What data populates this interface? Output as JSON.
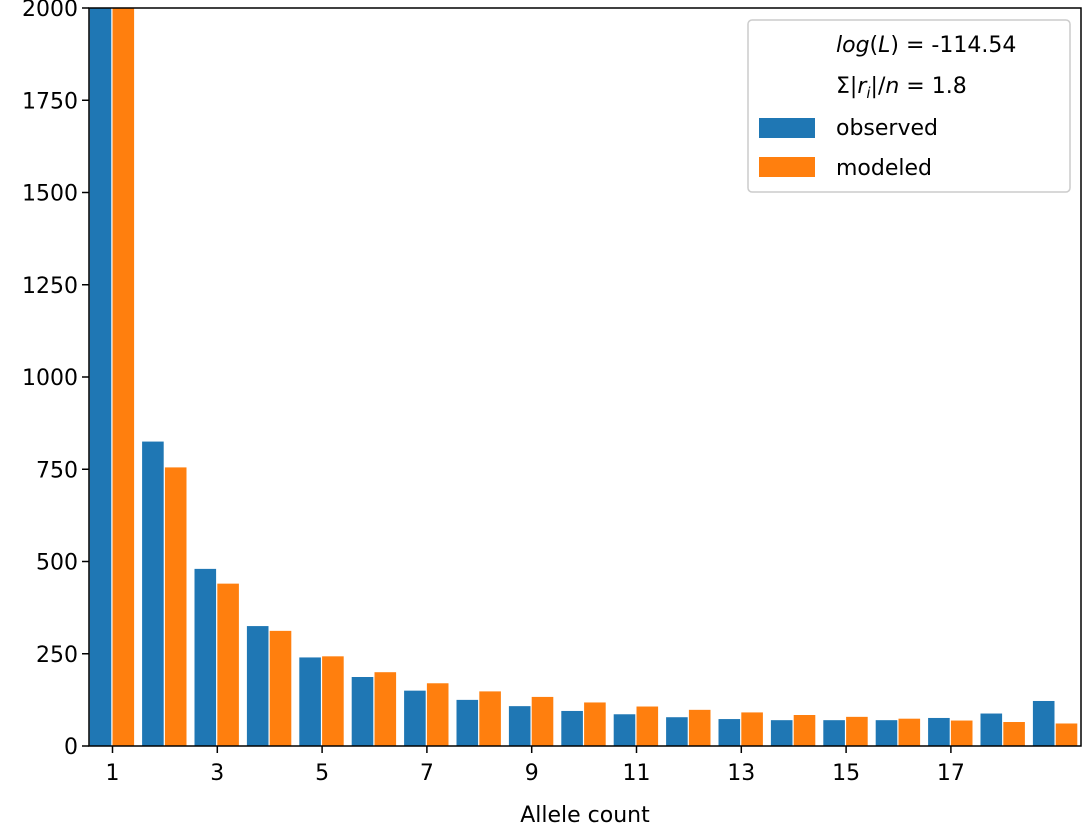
{
  "chart_data": {
    "type": "bar",
    "title": "",
    "xlabel": "Allele count",
    "ylabel": "",
    "ylim": [
      0,
      2000
    ],
    "y_ticks": [
      "0",
      "250",
      "500",
      "750",
      "1000",
      "1250",
      "1500",
      "1750",
      "2000"
    ],
    "x_ticks": [
      "1",
      "3",
      "5",
      "7",
      "9",
      "11",
      "13",
      "15",
      "17"
    ],
    "categories": [
      1,
      2,
      3,
      4,
      5,
      6,
      7,
      8,
      9,
      10,
      11,
      12,
      13,
      14,
      15,
      16,
      17,
      18,
      19
    ],
    "series": [
      {
        "name": "observed",
        "color": "#1f77b4",
        "values": [
          2000,
          825,
          480,
          325,
          240,
          187,
          150,
          125,
          108,
          95,
          86,
          78,
          73,
          70,
          70,
          70,
          76,
          88,
          122
        ]
      },
      {
        "name": "modeled",
        "color": "#ff7f0e",
        "values": [
          2010,
          755,
          440,
          312,
          243,
          200,
          170,
          148,
          133,
          118,
          107,
          98,
          91,
          84,
          79,
          74,
          69,
          65,
          61
        ]
      }
    ],
    "legend": {
      "position": "top-right",
      "stats": [
        "log(L) = -114.54",
        "Σ|r_i|/n = 1.8"
      ],
      "entries": [
        "observed",
        "modeled"
      ]
    },
    "grid": false
  }
}
